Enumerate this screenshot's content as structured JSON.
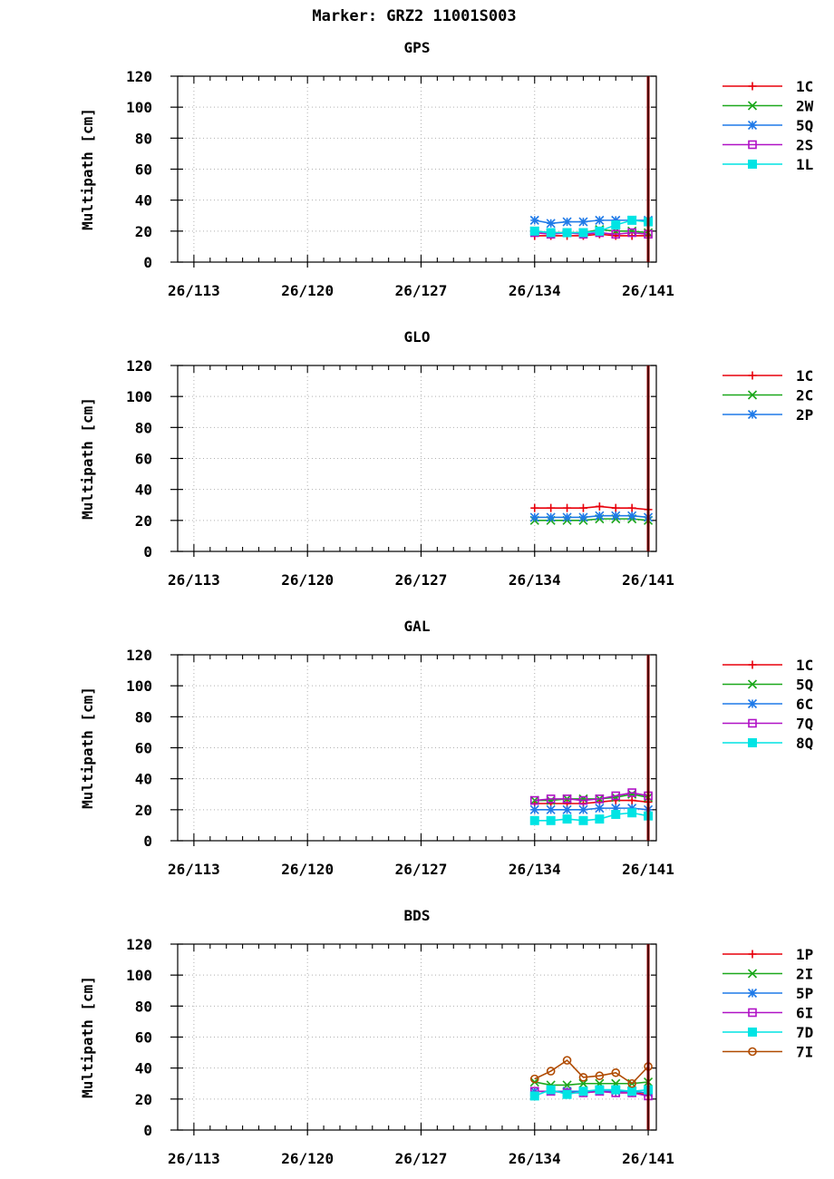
{
  "title": "Marker: GRZ2 11001S003",
  "colors": {
    "red": "#e8000b",
    "green": "#1ca81c",
    "blue": "#1f7ae8",
    "purple": "#b012c6",
    "cyan": "#00e4e4",
    "brown": "#b04a00",
    "grid": "#b0b0b0",
    "vline": "#a00000"
  },
  "chart_data": [
    {
      "type": "line",
      "title": "GPS",
      "ylabel": "Multipath [cm]",
      "xlabel": "",
      "ylim": [
        0,
        120
      ],
      "yticks": [
        0,
        20,
        40,
        60,
        80,
        100,
        120
      ],
      "xticks": [
        "26/113",
        "26/120",
        "26/127",
        "26/134",
        "26/141"
      ],
      "grid": true,
      "legend": "right",
      "x": [
        134,
        135,
        136,
        137,
        138,
        139,
        140,
        141
      ],
      "series": [
        {
          "name": "1C",
          "color": "#e8000b",
          "marker": "plus",
          "values": [
            17,
            17,
            17,
            17,
            18,
            17,
            17,
            17
          ]
        },
        {
          "name": "2W",
          "color": "#1ca81c",
          "marker": "x",
          "values": [
            20,
            19,
            19,
            19,
            21,
            20,
            20,
            19
          ]
        },
        {
          "name": "5Q",
          "color": "#1f7ae8",
          "marker": "star",
          "values": [
            27,
            25,
            26,
            26,
            27,
            27,
            27,
            27
          ]
        },
        {
          "name": "2S",
          "color": "#b012c6",
          "marker": "square",
          "values": [
            19,
            18,
            19,
            18,
            19,
            18,
            19,
            18
          ]
        },
        {
          "name": "1L",
          "color": "#00e4e4",
          "marker": "fsquare",
          "values": [
            20,
            19,
            19,
            19,
            20,
            24,
            27,
            26
          ]
        }
      ]
    },
    {
      "type": "line",
      "title": "GLO",
      "ylabel": "Multipath [cm]",
      "xlabel": "",
      "ylim": [
        0,
        120
      ],
      "yticks": [
        0,
        20,
        40,
        60,
        80,
        100,
        120
      ],
      "xticks": [
        "26/113",
        "26/120",
        "26/127",
        "26/134",
        "26/141"
      ],
      "grid": true,
      "legend": "right",
      "x": [
        134,
        135,
        136,
        137,
        138,
        139,
        140,
        141
      ],
      "series": [
        {
          "name": "1C",
          "color": "#e8000b",
          "marker": "plus",
          "values": [
            28,
            28,
            28,
            28,
            29,
            28,
            28,
            27
          ]
        },
        {
          "name": "2C",
          "color": "#1ca81c",
          "marker": "x",
          "values": [
            20,
            20,
            20,
            20,
            21,
            21,
            21,
            20
          ]
        },
        {
          "name": "2P",
          "color": "#1f7ae8",
          "marker": "star",
          "values": [
            22,
            22,
            22,
            22,
            23,
            23,
            23,
            22
          ]
        }
      ]
    },
    {
      "type": "line",
      "title": "GAL",
      "ylabel": "Multipath [cm]",
      "xlabel": "",
      "ylim": [
        0,
        120
      ],
      "yticks": [
        0,
        20,
        40,
        60,
        80,
        100,
        120
      ],
      "xticks": [
        "26/113",
        "26/120",
        "26/127",
        "26/134",
        "26/141"
      ],
      "grid": true,
      "legend": "right",
      "x": [
        134,
        135,
        136,
        137,
        138,
        139,
        140,
        141
      ],
      "series": [
        {
          "name": "1C",
          "color": "#e8000b",
          "marker": "plus",
          "values": [
            24,
            24,
            24,
            24,
            25,
            26,
            26,
            25
          ]
        },
        {
          "name": "5Q",
          "color": "#1ca81c",
          "marker": "x",
          "values": [
            26,
            26,
            27,
            27,
            27,
            28,
            30,
            28
          ]
        },
        {
          "name": "6C",
          "color": "#1f7ae8",
          "marker": "star",
          "values": [
            20,
            20,
            20,
            20,
            21,
            21,
            21,
            20
          ]
        },
        {
          "name": "7Q",
          "color": "#b012c6",
          "marker": "square",
          "values": [
            26,
            27,
            27,
            26,
            27,
            29,
            31,
            29
          ]
        },
        {
          "name": "8Q",
          "color": "#00e4e4",
          "marker": "fsquare",
          "values": [
            13,
            13,
            14,
            13,
            14,
            17,
            18,
            16
          ]
        }
      ]
    },
    {
      "type": "line",
      "title": "BDS",
      "ylabel": "Multipath [cm]",
      "xlabel": "",
      "ylim": [
        0,
        120
      ],
      "yticks": [
        0,
        20,
        40,
        60,
        80,
        100,
        120
      ],
      "xticks": [
        "26/113",
        "26/120",
        "26/127",
        "26/134",
        "26/141"
      ],
      "grid": true,
      "legend": "right",
      "x": [
        134,
        135,
        136,
        137,
        138,
        139,
        140,
        141
      ],
      "series": [
        {
          "name": "1P",
          "color": "#e8000b",
          "marker": "plus",
          "values": [
            25,
            25,
            25,
            24,
            25,
            24,
            24,
            23
          ]
        },
        {
          "name": "2I",
          "color": "#1ca81c",
          "marker": "x",
          "values": [
            31,
            29,
            29,
            30,
            30,
            30,
            30,
            31
          ]
        },
        {
          "name": "5P",
          "color": "#1f7ae8",
          "marker": "star",
          "values": [
            25,
            25,
            25,
            25,
            25,
            25,
            25,
            24
          ]
        },
        {
          "name": "6I",
          "color": "#b012c6",
          "marker": "square",
          "values": [
            25,
            25,
            24,
            24,
            25,
            24,
            24,
            22
          ]
        },
        {
          "name": "7D",
          "color": "#00e4e4",
          "marker": "fsquare",
          "values": [
            22,
            26,
            23,
            25,
            26,
            26,
            25,
            26
          ]
        },
        {
          "name": "7I",
          "color": "#b04a00",
          "marker": "circle",
          "values": [
            33,
            38,
            45,
            34,
            35,
            37,
            30,
            41
          ]
        }
      ]
    }
  ]
}
